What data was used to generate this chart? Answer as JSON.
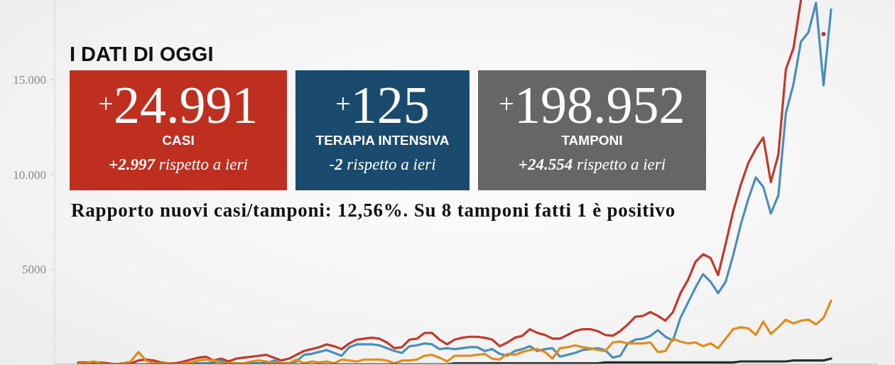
{
  "chart_data": [
    {
      "type": "line",
      "categories": [
        null,
        null,
        null,
        null,
        null,
        null,
        null,
        null,
        null,
        null,
        null,
        null,
        null,
        null,
        null,
        null,
        null,
        null,
        null,
        null,
        null,
        null,
        null,
        null,
        null,
        null,
        null,
        null,
        null,
        null,
        null,
        null,
        null,
        null,
        null,
        null,
        null,
        null,
        null,
        null,
        null,
        null,
        null,
        null,
        null,
        null,
        null,
        null,
        null,
        null,
        null,
        null,
        null,
        null,
        null,
        null,
        null,
        null,
        null,
        null,
        null,
        null,
        null,
        null,
        null,
        null,
        null,
        null,
        null,
        null,
        null,
        null,
        null,
        null,
        null,
        null,
        null,
        null,
        null,
        null,
        null,
        null,
        null,
        null,
        null,
        null,
        null,
        null,
        null,
        null,
        null,
        null,
        null,
        null,
        null,
        null,
        null,
        null,
        null,
        null,
        null
      ],
      "series": [
        {
          "color": "#c0392b",
          "values": [
            100,
            100,
            100,
            100,
            50,
            0,
            50,
            50,
            200,
            250,
            200,
            100,
            50,
            50,
            150,
            250,
            350,
            400,
            200,
            300,
            150,
            300,
            350,
            400,
            450,
            500,
            350,
            200,
            300,
            500,
            700,
            800,
            900,
            1050,
            950,
            800,
            1100,
            1300,
            1350,
            1400,
            1350,
            1150,
            850,
            900,
            1300,
            1350,
            1650,
            1650,
            1300,
            1050,
            1300,
            1400,
            1450,
            1450,
            1400,
            1300,
            950,
            1150,
            1400,
            1500,
            1850,
            1650,
            1550,
            1350,
            1350,
            1550,
            1750,
            1850,
            1850,
            1750,
            1550,
            1500,
            1750,
            2100,
            2500,
            2550,
            2750,
            2550,
            2300,
            2750,
            3750,
            4450,
            5400,
            5800,
            5600,
            4700,
            6350,
            8050,
            9450,
            10600,
            11350,
            11950,
            9600,
            11050,
            15550,
            16650,
            19200,
            null,
            null,
            17400,
            null
          ]
        },
        {
          "color": "#4a8fbc",
          "values": [
            null,
            null,
            null,
            null,
            null,
            null,
            null,
            null,
            null,
            null,
            null,
            null,
            null,
            null,
            null,
            50,
            50,
            50,
            100,
            200,
            50,
            null,
            50,
            50,
            50,
            50,
            200,
            50,
            50,
            150,
            500,
            550,
            650,
            750,
            600,
            450,
            900,
            1050,
            1050,
            1050,
            1000,
            850,
            700,
            600,
            950,
            1000,
            1100,
            1050,
            800,
            850,
            800,
            850,
            900,
            900,
            700,
            800,
            550,
            450,
            700,
            800,
            950,
            700,
            800,
            850,
            400,
            500,
            600,
            750,
            800,
            850,
            750,
            350,
            450,
            1100,
            1300,
            1350,
            1500,
            1800,
            1450,
            1250,
            2450,
            3250,
            4050,
            4750,
            4350,
            3750,
            4350,
            5750,
            7350,
            8700,
            9850,
            9350,
            7950,
            8900,
            13250,
            14750,
            17000,
            17500,
            19050,
            14700,
            18700
          ]
        },
        {
          "color": "#e08c1f",
          "values": [
            50,
            50,
            150,
            50,
            0,
            0,
            50,
            150,
            650,
            200,
            50,
            50,
            50,
            0,
            50,
            100,
            200,
            250,
            200,
            100,
            50,
            50,
            50,
            150,
            200,
            150,
            50,
            50,
            50,
            250,
            50,
            150,
            100,
            150,
            50,
            250,
            200,
            150,
            250,
            250,
            250,
            200,
            50,
            200,
            200,
            250,
            450,
            500,
            350,
            150,
            450,
            450,
            450,
            500,
            550,
            300,
            250,
            550,
            500,
            650,
            750,
            800,
            650,
            300,
            850,
            900,
            1000,
            900,
            850,
            750,
            700,
            1150,
            1200,
            1100,
            1100,
            1100,
            1150,
            650,
            700,
            1350,
            1200,
            1100,
            1150,
            950,
            1100,
            850,
            1350,
            1850,
            1950,
            1900,
            1550,
            2250,
            1600,
            1950,
            2350,
            2150,
            2300,
            2350,
            2100,
            2450,
            3350
          ]
        },
        {
          "color": "#2b2b2b",
          "values": [
            0,
            0,
            0,
            0,
            0,
            0,
            0,
            0,
            0,
            0,
            0,
            0,
            0,
            0,
            0,
            0,
            0,
            0,
            0,
            0,
            0,
            0,
            0,
            0,
            0,
            0,
            0,
            0,
            0,
            0,
            0,
            0,
            0,
            0,
            0,
            0,
            0,
            0,
            0,
            0,
            0,
            0,
            0,
            0,
            0,
            0,
            0,
            0,
            0,
            0,
            50,
            50,
            50,
            50,
            50,
            50,
            50,
            50,
            50,
            50,
            50,
            50,
            50,
            50,
            50,
            50,
            50,
            50,
            50,
            50,
            100,
            100,
            100,
            100,
            100,
            100,
            100,
            100,
            100,
            100,
            100,
            100,
            100,
            100,
            100,
            100,
            100,
            100,
            150,
            150,
            150,
            150,
            150,
            150,
            150,
            200,
            200,
            200,
            200,
            200,
            300
          ]
        }
      ],
      "ylim": [
        0,
        19200
      ],
      "yticks": [
        5000,
        {
          "value": 10000,
          "label": "10.000"
        },
        {
          "value": 15000,
          "label": "15.000"
        }
      ],
      "tick_labels": "y",
      "marker": "none",
      "line_style": "solid"
    },
    {
      "type": "other",
      "title": "I DATI DI OGGI",
      "categories": [
        "CASI",
        "TERAPIA INTENSIVA",
        "TAMPONI"
      ],
      "value_labels": [
        "$^{+}$24.991",
        "$^{+}$125",
        "$^{+}$198.952"
      ],
      "colors": [
        "#bf2f1f",
        "#1b4a6f",
        "#666666"
      ],
      "annotations": [
        "+2.997 rispetto a ieri",
        "-2 rispetto a ieri",
        "+24.554 rispetto a ieri",
        "Rapporto nuovi casi/tamponi: 12,56%. Su 8 tamponi fatti 1 è positivo"
      ]
    }
  ]
}
